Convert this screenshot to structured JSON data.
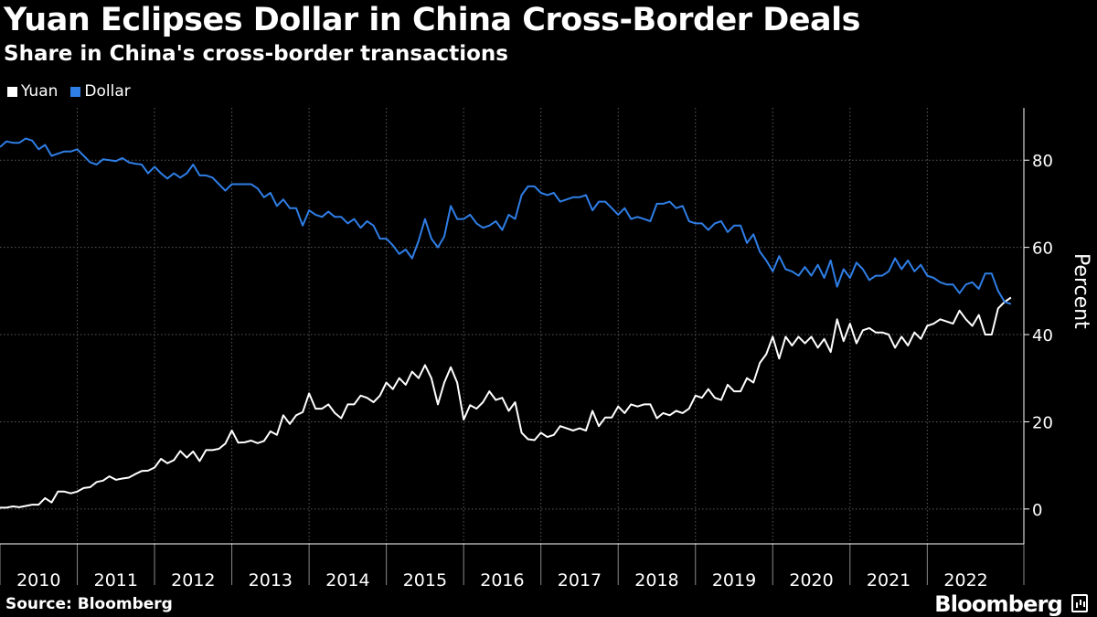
{
  "header": {
    "title": "Yuan Eclipses Dollar in China Cross-Border Deals",
    "subtitle": "Share in China's cross-border transactions"
  },
  "footer": {
    "source": "Source: Bloomberg",
    "brand": "Bloomberg"
  },
  "colors": {
    "yuan": "#ffffff",
    "dollar": "#2f7ee6"
  },
  "chart_data": {
    "type": "line",
    "title": "Yuan Eclipses Dollar in China Cross-Border Deals",
    "subtitle": "Share in China's cross-border transactions",
    "xlabel": "",
    "ylabel": "Percent",
    "ylim": [
      -8,
      92
    ],
    "yticks": [
      0,
      20,
      40,
      60,
      80
    ],
    "x_tick_labels": [
      "2010",
      "2011",
      "2012",
      "2013",
      "2014",
      "2015",
      "2016",
      "2017",
      "2018",
      "2019",
      "2020",
      "2021",
      "2022"
    ],
    "x_range": [
      2010.0,
      2023.25
    ],
    "frequency": "monthly",
    "x_start": "2010-01",
    "grid": true,
    "legend_position": "top-left",
    "series": [
      {
        "name": "Yuan",
        "color": "#ffffff",
        "values": [
          0.3,
          0.3,
          0.6,
          0.4,
          0.7,
          1.0,
          1.0,
          2.5,
          1.5,
          4.0,
          4.0,
          3.6,
          4.0,
          4.8,
          5.0,
          6.2,
          6.5,
          7.5,
          6.7,
          7.0,
          7.2,
          8.0,
          8.7,
          8.8,
          9.5,
          11.5,
          10.5,
          11.2,
          13.3,
          11.8,
          13.2,
          11.0,
          13.5,
          13.5,
          13.8,
          15.0,
          18.0,
          15.2,
          15.3,
          15.7,
          15.1,
          15.6,
          17.8,
          17.0,
          21.5,
          19.5,
          21.5,
          22.2,
          26.5,
          23.0,
          23.0,
          24.0,
          22.0,
          20.8,
          24.0,
          24.0,
          26.0,
          25.5,
          24.5,
          26.0,
          29.0,
          27.5,
          30.0,
          28.5,
          31.5,
          30.0,
          33.0,
          30.0,
          24.0,
          29.0,
          32.5,
          29.0,
          20.5,
          23.8,
          23.0,
          24.5,
          27.0,
          25.0,
          25.5,
          22.5,
          24.5,
          17.5,
          16.0,
          15.8,
          17.5,
          16.5,
          17.0,
          19.0,
          18.5,
          18.0,
          18.5,
          18.0,
          22.5,
          19.0,
          21.0,
          21.0,
          23.5,
          22.0,
          24.0,
          23.5,
          24.0,
          24.0,
          20.8,
          22.0,
          21.5,
          22.5,
          22.0,
          23.0,
          26.0,
          25.5,
          27.5,
          25.5,
          25.0,
          28.5,
          27.0,
          27.0,
          30.0,
          29.0,
          33.5,
          35.5,
          39.5,
          34.5,
          39.5,
          37.5,
          39.5,
          38.0,
          39.5,
          37.0,
          39.0,
          36.0,
          43.5,
          38.5,
          42.5,
          38.0,
          41.0,
          41.5,
          40.5,
          40.5,
          40.0,
          37.0,
          39.5,
          37.5,
          40.5,
          39.0,
          42.0,
          42.5,
          43.5,
          43.0,
          42.5,
          45.5,
          43.5,
          42.0,
          44.5,
          40.0,
          40.0,
          46.0,
          47.5,
          48.5
        ]
      },
      {
        "name": "Dollar",
        "color": "#2f7ee6",
        "values": [
          83.0,
          84.3,
          84.0,
          84.0,
          85.0,
          84.5,
          82.5,
          83.5,
          81.0,
          81.5,
          82.0,
          82.0,
          82.5,
          81.0,
          79.5,
          79.0,
          80.2,
          80.0,
          79.8,
          80.5,
          79.5,
          79.2,
          79.0,
          77.0,
          78.5,
          77.0,
          75.8,
          77.0,
          76.0,
          77.0,
          79.0,
          76.5,
          76.5,
          76.0,
          74.5,
          73.0,
          74.5,
          74.5,
          74.5,
          74.5,
          73.5,
          71.5,
          72.5,
          69.5,
          71.0,
          69.0,
          69.0,
          65.0,
          68.5,
          67.5,
          67.0,
          68.2,
          67.0,
          67.0,
          65.5,
          66.5,
          64.5,
          66.0,
          65.0,
          62.0,
          62.0,
          60.5,
          58.5,
          59.5,
          57.5,
          61.5,
          66.5,
          62.0,
          60.0,
          62.5,
          69.5,
          66.5,
          66.5,
          67.5,
          65.5,
          64.5,
          65.0,
          66.0,
          64.0,
          67.5,
          66.5,
          72.0,
          74.0,
          74.0,
          72.5,
          72.0,
          72.5,
          70.5,
          71.0,
          71.5,
          71.5,
          72.0,
          68.5,
          70.5,
          70.5,
          69.0,
          67.5,
          69.0,
          66.5,
          67.0,
          66.5,
          66.0,
          70.0,
          70.0,
          70.5,
          69.0,
          69.5,
          66.0,
          65.5,
          65.5,
          64.0,
          65.5,
          66.0,
          63.5,
          65.0,
          65.0,
          61.0,
          63.0,
          59.0,
          57.0,
          54.5,
          58.0,
          55.0,
          54.5,
          53.5,
          55.5,
          53.5,
          56.0,
          53.0,
          57.0,
          51.0,
          55.0,
          53.0,
          56.5,
          55.0,
          52.5,
          53.5,
          53.5,
          54.5,
          57.5,
          55.0,
          57.0,
          54.5,
          56.0,
          53.5,
          53.0,
          52.0,
          51.5,
          51.5,
          49.5,
          51.5,
          52.0,
          50.5,
          54.0,
          54.0,
          50.0,
          47.5,
          47.0
        ]
      }
    ]
  }
}
